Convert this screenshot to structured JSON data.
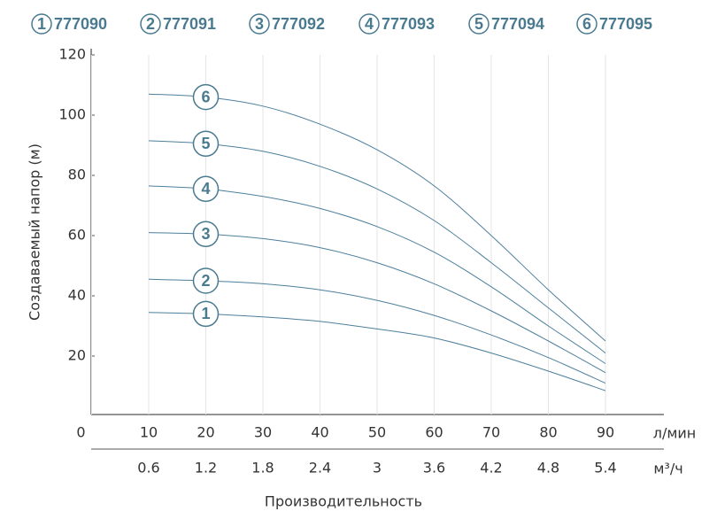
{
  "chart_data": {
    "type": "line",
    "y_label": "Создаваемый напор (м)",
    "x_label": "Производительность",
    "x_unit": "л/мин",
    "x2_unit": "м³/ч",
    "x": [
      10,
      20,
      30,
      40,
      50,
      60,
      70,
      80,
      90
    ],
    "xlim": [
      0,
      100
    ],
    "xticks": [
      0,
      10,
      20,
      30,
      40,
      50,
      60,
      70,
      80,
      90
    ],
    "x2lim": [
      0,
      6
    ],
    "x2ticks": [
      0.6,
      1.2,
      1.8,
      2.4,
      3.0,
      3.6,
      4.2,
      4.8,
      5.4
    ],
    "ylim": [
      0,
      120
    ],
    "yticks": [
      20,
      40,
      60,
      80,
      100,
      120
    ],
    "grid": true,
    "series": [
      {
        "name": "777090",
        "label": "1",
        "color": "#4d7f9c",
        "values": [
          34.5,
          34,
          33,
          31.5,
          29,
          26,
          21,
          15,
          8.5
        ]
      },
      {
        "name": "777091",
        "label": "2",
        "color": "#4d7f9c",
        "values": [
          45.5,
          45,
          44,
          42,
          38.5,
          33.5,
          27,
          19.5,
          11
        ]
      },
      {
        "name": "777092",
        "label": "3",
        "color": "#4d7f9c",
        "values": [
          61,
          60.5,
          59,
          56,
          51,
          44,
          35,
          25,
          14.5
        ]
      },
      {
        "name": "777093",
        "label": "4",
        "color": "#4d7f9c",
        "values": [
          76.5,
          75.5,
          73,
          69,
          63,
          54.5,
          43,
          30,
          17.5
        ]
      },
      {
        "name": "777094",
        "label": "5",
        "color": "#4d7f9c",
        "values": [
          91.5,
          90.5,
          88,
          83,
          75.5,
          65,
          51,
          36,
          21
        ]
      },
      {
        "name": "777095",
        "label": "6",
        "color": "#4d7f9c",
        "values": [
          107,
          106,
          103,
          97,
          88.5,
          76.5,
          60,
          42,
          25
        ]
      }
    ]
  }
}
